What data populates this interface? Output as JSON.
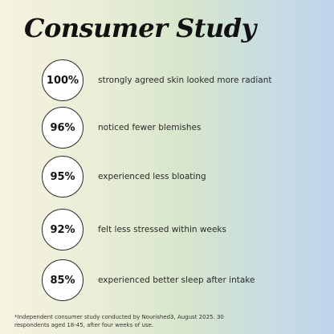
{
  "title": "Consumer Study",
  "stats": [
    {
      "value": "100%",
      "text": "strongly agreed skin looked more radiant"
    },
    {
      "value": "96%",
      "text": "noticed fewer blemishes"
    },
    {
      "value": "95%",
      "text": "experienced less bloating"
    },
    {
      "value": "92%",
      "text": "felt less stressed within weeks"
    },
    {
      "value": "85%",
      "text": "experienced better sleep after intake"
    }
  ],
  "footnote": "*Independent consumer study conducted by Nourished3, August 2025. 30 respondents aged 18-45, after four weeks of use."
}
